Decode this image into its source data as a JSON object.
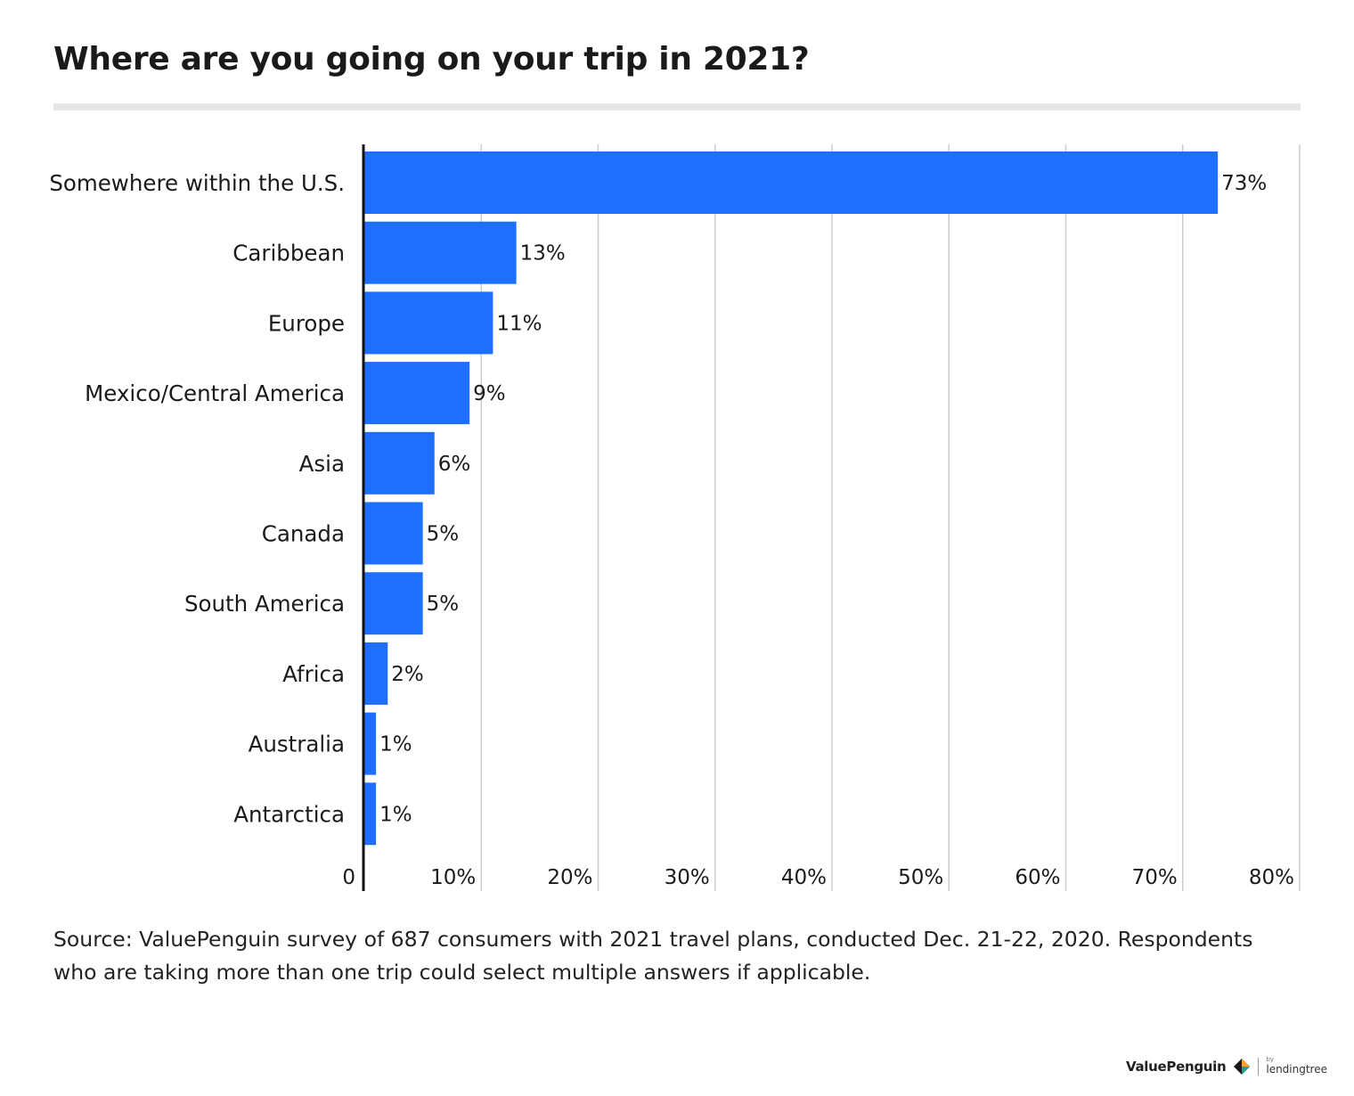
{
  "title": "Where are you going on your trip in 2021?",
  "source": "Source: ValuePenguin survey of 687 consumers with 2021 travel plans, conducted Dec. 21-22, 2020. Respondents who are taking more than one trip could select multiple answers if applicable.",
  "brand": {
    "name": "ValuePenguin",
    "by": "by",
    "partner": "lendingtree",
    "logo_icon": "diamond-logo-icon"
  },
  "colors": {
    "bar": "#1f6fff",
    "grid": "#cccccc",
    "axis": "#111111",
    "text": "#1a1a1a",
    "rule": "#e6e6e6"
  },
  "chart_data": {
    "type": "bar",
    "orientation": "horizontal",
    "categories": [
      "Somewhere within the U.S.",
      "Caribbean",
      "Europe",
      "Mexico/Central America",
      "Asia",
      "Canada",
      "South America",
      "Africa",
      "Australia",
      "Antarctica"
    ],
    "values": [
      73,
      13,
      11,
      9,
      6,
      5,
      5,
      2,
      1,
      1
    ],
    "data_labels": [
      "73%",
      "13%",
      "11%",
      "9%",
      "6%",
      "5%",
      "5%",
      "2%",
      "1%",
      "1%"
    ],
    "xlim": [
      0,
      80
    ],
    "xticks": [
      0,
      10,
      20,
      30,
      40,
      50,
      60,
      70,
      80
    ],
    "xtick_labels": [
      "0",
      "10%",
      "20%",
      "30%",
      "40%",
      "50%",
      "60%",
      "70%",
      "80%"
    ],
    "grid": "vertical",
    "legend": "none"
  }
}
